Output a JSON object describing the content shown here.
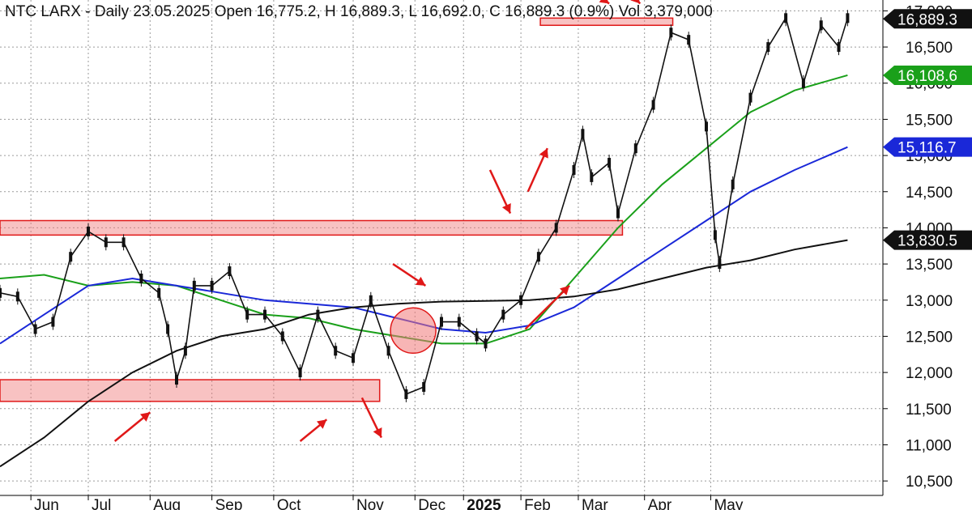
{
  "header": {
    "text": "NTC LARX - Daily 23.05.2025 Open 16,775.2, H 16,889.3, L 16,692.0, C 16,889.3 (0.9%) Vol 3,379,000"
  },
  "chart_data": {
    "type": "candlestick",
    "ylim": [
      10300,
      17150
    ],
    "grid": true,
    "y_ticks": [
      10500,
      11000,
      11500,
      12000,
      12500,
      13000,
      13500,
      14000,
      14500,
      15000,
      15500,
      16000,
      16500,
      17000
    ],
    "y_tick_labels": [
      "10,500",
      "11,000",
      "11,500",
      "12,000",
      "12,500",
      "13,000",
      "13,500",
      "14,000",
      "14,500",
      "15,000",
      "15,500",
      "16,000",
      "16,500",
      "17,000"
    ],
    "x_tick_labels": [
      "Jun",
      "Jul",
      "Aug",
      "Sep",
      "Oct",
      "Nov",
      "Dec",
      "2025",
      "Feb",
      "Mar",
      "Apr",
      "May"
    ],
    "x_tick_positions": [
      0.035,
      0.1,
      0.17,
      0.24,
      0.31,
      0.4,
      0.47,
      0.525,
      0.59,
      0.655,
      0.73,
      0.805
    ],
    "price_path": [
      [
        0,
        13100
      ],
      [
        0.02,
        13050
      ],
      [
        0.04,
        12600
      ],
      [
        0.06,
        12700
      ],
      [
        0.08,
        13600
      ],
      [
        0.1,
        13950
      ],
      [
        0.12,
        13800
      ],
      [
        0.14,
        13800
      ],
      [
        0.16,
        13300
      ],
      [
        0.18,
        13100
      ],
      [
        0.19,
        12600
      ],
      [
        0.2,
        11900
      ],
      [
        0.21,
        12300
      ],
      [
        0.22,
        13200
      ],
      [
        0.24,
        13200
      ],
      [
        0.26,
        13400
      ],
      [
        0.28,
        12800
      ],
      [
        0.3,
        12800
      ],
      [
        0.32,
        12500
      ],
      [
        0.34,
        12000
      ],
      [
        0.36,
        12800
      ],
      [
        0.38,
        12300
      ],
      [
        0.4,
        12200
      ],
      [
        0.42,
        13000
      ],
      [
        0.44,
        12300
      ],
      [
        0.46,
        11700
      ],
      [
        0.48,
        11800
      ],
      [
        0.5,
        12700
      ],
      [
        0.52,
        12700
      ],
      [
        0.54,
        12500
      ],
      [
        0.55,
        12400
      ],
      [
        0.57,
        12800
      ],
      [
        0.59,
        13000
      ],
      [
        0.61,
        13600
      ],
      [
        0.63,
        14000
      ],
      [
        0.65,
        14800
      ],
      [
        0.66,
        15300
      ],
      [
        0.67,
        14700
      ],
      [
        0.69,
        14900
      ],
      [
        0.7,
        14200
      ],
      [
        0.72,
        15100
      ],
      [
        0.74,
        15700
      ],
      [
        0.76,
        16700
      ],
      [
        0.78,
        16600
      ],
      [
        0.8,
        15400
      ],
      [
        0.81,
        13900
      ],
      [
        0.815,
        13500
      ],
      [
        0.83,
        14600
      ],
      [
        0.85,
        15800
      ],
      [
        0.87,
        16500
      ],
      [
        0.89,
        16900
      ],
      [
        0.91,
        16000
      ],
      [
        0.93,
        16800
      ],
      [
        0.95,
        16500
      ],
      [
        0.96,
        16900
      ]
    ],
    "moving_averages": [
      {
        "color": "#1aa01a",
        "last_value": 16108.6,
        "last_label": "16,108.6",
        "path": [
          [
            0,
            13300
          ],
          [
            0.05,
            13350
          ],
          [
            0.1,
            13200
          ],
          [
            0.15,
            13250
          ],
          [
            0.2,
            13200
          ],
          [
            0.25,
            13000
          ],
          [
            0.3,
            12800
          ],
          [
            0.35,
            12750
          ],
          [
            0.4,
            12600
          ],
          [
            0.45,
            12500
          ],
          [
            0.5,
            12400
          ],
          [
            0.55,
            12400
          ],
          [
            0.6,
            12600
          ],
          [
            0.65,
            13300
          ],
          [
            0.7,
            14000
          ],
          [
            0.75,
            14600
          ],
          [
            0.8,
            15100
          ],
          [
            0.85,
            15600
          ],
          [
            0.9,
            15900
          ],
          [
            0.96,
            16110
          ]
        ]
      },
      {
        "color": "#1a28d8",
        "last_value": 15116.7,
        "last_label": "15,116.7",
        "path": [
          [
            0,
            12400
          ],
          [
            0.05,
            12800
          ],
          [
            0.1,
            13200
          ],
          [
            0.15,
            13300
          ],
          [
            0.2,
            13200
          ],
          [
            0.25,
            13100
          ],
          [
            0.3,
            13000
          ],
          [
            0.35,
            12950
          ],
          [
            0.4,
            12900
          ],
          [
            0.45,
            12750
          ],
          [
            0.5,
            12600
          ],
          [
            0.55,
            12550
          ],
          [
            0.6,
            12650
          ],
          [
            0.65,
            12900
          ],
          [
            0.7,
            13300
          ],
          [
            0.75,
            13700
          ],
          [
            0.8,
            14100
          ],
          [
            0.85,
            14500
          ],
          [
            0.9,
            14800
          ],
          [
            0.96,
            15116
          ]
        ]
      },
      {
        "color": "#111111",
        "last_value": 13830.5,
        "last_label": "13,830.5",
        "path": [
          [
            0,
            10700
          ],
          [
            0.05,
            11100
          ],
          [
            0.1,
            11600
          ],
          [
            0.15,
            12000
          ],
          [
            0.2,
            12300
          ],
          [
            0.25,
            12500
          ],
          [
            0.3,
            12600
          ],
          [
            0.35,
            12800
          ],
          [
            0.4,
            12900
          ],
          [
            0.45,
            12950
          ],
          [
            0.5,
            12980
          ],
          [
            0.55,
            12990
          ],
          [
            0.6,
            13000
          ],
          [
            0.65,
            13050
          ],
          [
            0.7,
            13150
          ],
          [
            0.75,
            13300
          ],
          [
            0.8,
            13450
          ],
          [
            0.85,
            13550
          ],
          [
            0.9,
            13700
          ],
          [
            0.96,
            13830
          ]
        ]
      }
    ],
    "last_price": {
      "value": 16889.3,
      "label": "16,889.3"
    },
    "zones": [
      {
        "x": [
          0.0,
          0.43
        ],
        "y": [
          11600,
          11900
        ]
      },
      {
        "x": [
          0.0,
          0.705
        ],
        "y": [
          13900,
          14100
        ]
      },
      {
        "x": [
          0.612,
          0.762
        ],
        "y": [
          16800,
          16900
        ]
      }
    ],
    "circle": {
      "x": 0.468,
      "y": 12580
    },
    "arrows": [
      {
        "from": [
          0.13,
          11050
        ],
        "to": [
          0.17,
          11450
        ],
        "note": ""
      },
      {
        "from": [
          0.34,
          11050
        ],
        "to": [
          0.37,
          11350
        ],
        "note": ""
      },
      {
        "from": [
          0.41,
          11650
        ],
        "to": [
          0.432,
          11100
        ],
        "note": ""
      },
      {
        "from": [
          0.445,
          13500
        ],
        "to": [
          0.482,
          13200
        ],
        "note": ""
      },
      {
        "from": [
          0.555,
          14800
        ],
        "to": [
          0.578,
          14200
        ],
        "note": ""
      },
      {
        "from": [
          0.598,
          14500
        ],
        "to": [
          0.62,
          15100
        ],
        "note": ""
      },
      {
        "from": [
          0.595,
          12600
        ],
        "to": [
          0.645,
          13200
        ],
        "note": ""
      },
      {
        "from": [
          0.668,
          17300
        ],
        "to": [
          0.69,
          17100
        ],
        "note": ""
      },
      {
        "from": [
          0.71,
          17300
        ],
        "to": [
          0.725,
          17100
        ],
        "note": ""
      }
    ]
  }
}
